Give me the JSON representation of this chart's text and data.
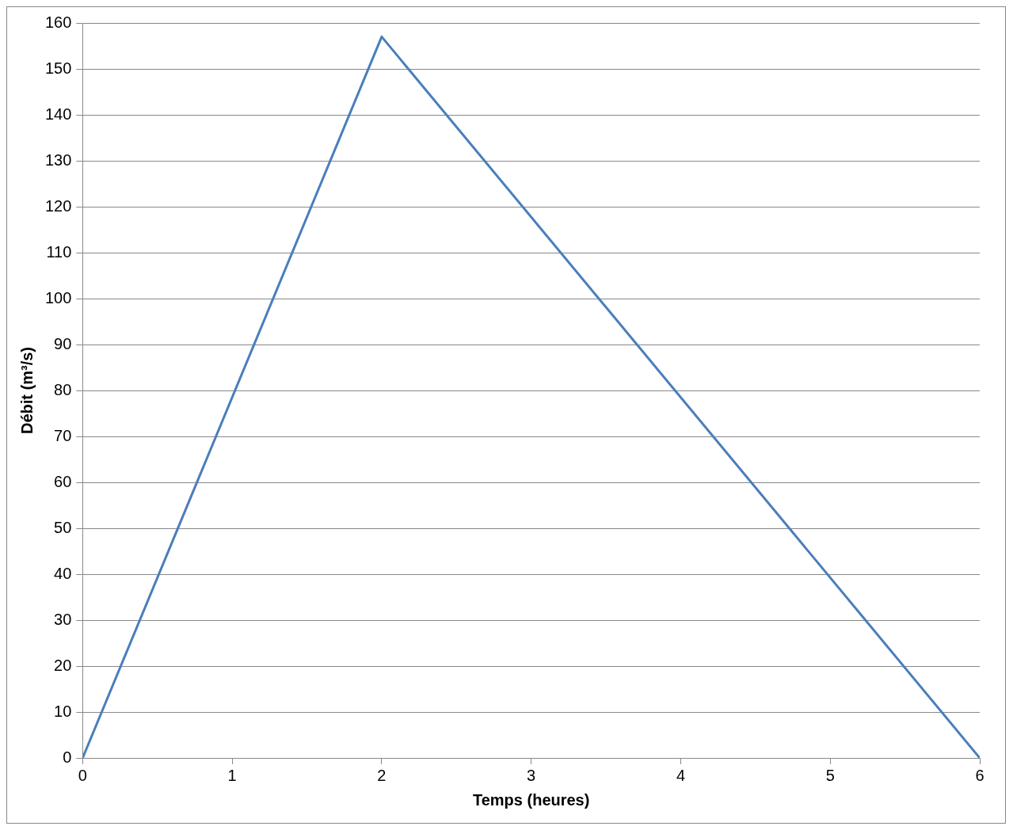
{
  "chart_data": {
    "type": "line",
    "xlabel": "Temps (heures)",
    "ylabel": "Débit (m³/s)",
    "x": [
      0,
      2,
      6
    ],
    "series": [
      {
        "color": "#4a7ebb",
        "values": [
          0,
          157,
          0
        ]
      }
    ],
    "xlim": [
      0,
      6
    ],
    "xticks": [
      0,
      1,
      2,
      3,
      4,
      5,
      6
    ],
    "ylim": [
      0,
      160
    ],
    "yticks": [
      0,
      10,
      20,
      30,
      40,
      50,
      60,
      70,
      80,
      90,
      100,
      110,
      120,
      130,
      140,
      150,
      160
    ],
    "grid": "y",
    "legend": false,
    "marker": "none",
    "line_style": "solid"
  }
}
